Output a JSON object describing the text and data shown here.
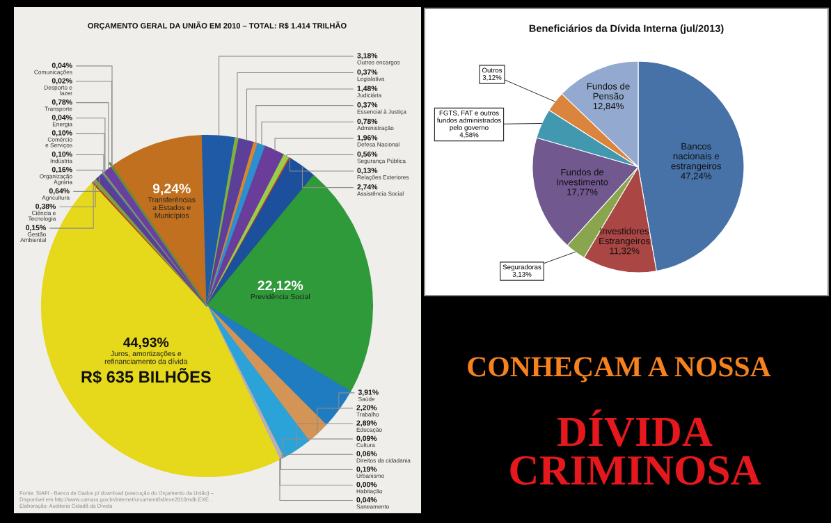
{
  "chart_data": [
    {
      "type": "pie",
      "title": "ORÇAMENTO GERAL DA UNIÃO EM 2010 – TOTAL: R$ 1.414 TRILHÃO",
      "categories": [
        "Transferências\na Estados e\nMunicípios",
        "Outros encargos",
        "Legislativa",
        "Judiciária",
        "Essencial à Justiça",
        "Administração",
        "Defesa Nacional",
        "Segurança Pública",
        "Relações Exteriores",
        "Assistência Social",
        "Previdência Social",
        "Saúde",
        "Trabalho",
        "Educação",
        "Cultura",
        "Direitos da cidadania",
        "Urbanismo",
        "Habitação",
        "Saneamento",
        "Juros, amortizações e\nrefinanciamento da dívida",
        "Gestão\nAmbiental",
        "Ciência e\nTecnologia",
        "Agricultura",
        "Organização\nAgrária",
        "Indústria",
        "Comércio\ne Serviços",
        "Energia",
        "Transporte",
        "Desporto e\nlazer",
        "Comunicações"
      ],
      "values": [
        9.24,
        3.18,
        0.37,
        1.48,
        0.37,
        0.78,
        1.96,
        0.56,
        0.13,
        2.74,
        22.12,
        3.91,
        2.2,
        2.89,
        0.09,
        0.06,
        0.19,
        0.0,
        0.04,
        44.93,
        0.15,
        0.38,
        0.64,
        0.16,
        0.1,
        0.1,
        0.04,
        0.78,
        0.02,
        0.04
      ],
      "colors": [
        "#c0701e",
        "#1f5aa6",
        "#7fb03f",
        "#5b3f99",
        "#d9862d",
        "#2b8fd0",
        "#6a3d9a",
        "#9acd4a",
        "#c0392b",
        "#1c4f9c",
        "#2f9a3a",
        "#1f7cc0",
        "#d49456",
        "#2ba3d8",
        "#e5a0a0",
        "#a8c86a",
        "#b9a9d6",
        "#e27b7b",
        "#8fb4e3",
        "#e6d81a",
        "#b8322e",
        "#7da23c",
        "#5c3d98",
        "#2c5fa8",
        "#d8862c",
        "#2a9fc4",
        "#c0392b",
        "#6b3fa0",
        "#3b9bd4",
        "#5e8f2f"
      ],
      "value_labels": [
        "9,24%",
        "3,18%",
        "0,37%",
        "1,48%",
        "0,37%",
        "0,78%",
        "1,96%",
        "0,56%",
        "0,13%",
        "2,74%",
        "22,12%",
        "3,91%",
        "2,20%",
        "2,89%",
        "0,09%",
        "0,06%",
        "0,19%",
        "0,00%",
        "0,04%",
        "44,93%",
        "0,15%",
        "0,38%",
        "0,64%",
        "0,16%",
        "0,10%",
        "0,10%",
        "0,04%",
        "0,78%",
        "0,02%",
        "0,04%"
      ],
      "annotations": [
        "R$ 635 BILHÕES",
        "Fonte: SIAFI - Banco de Dados p/ download (execução do Orçamento da União) –\nDisponível em http://www.camara.gov.br/internet/orcament/bd/exe2010mdb.EXE .\nElaboração: Auditoria Cidadã da Dívida"
      ]
    },
    {
      "type": "pie",
      "title": "Beneficiários da Dívida Interna (jul/2013)",
      "categories": [
        "Bancos\nnacionais e\nestrangeiros",
        "Investidores\nEstrangeiros",
        "Seguradoras",
        "Fundos de\nInvestimento",
        "FGTS, FAT e outros\nfundos administrados\npelo governo",
        "Outros",
        "Fundos de\nPensão"
      ],
      "values": [
        47.24,
        11.32,
        3.13,
        17.77,
        4.58,
        3.12,
        12.84
      ],
      "colors": [
        "#4672a8",
        "#aa4643",
        "#89a54e",
        "#71588f",
        "#4198af",
        "#db843d",
        "#93a9cf"
      ],
      "value_labels": [
        "47,24%",
        "11,32%",
        "3,13%",
        "17,77%",
        "4,58%",
        "3,12%",
        "12,84%"
      ]
    },
    {
      "type": "other",
      "annotations": [
        "CONHEÇAM A NOSSA",
        "DÍVIDA\nCRIMINOSA"
      ]
    }
  ]
}
